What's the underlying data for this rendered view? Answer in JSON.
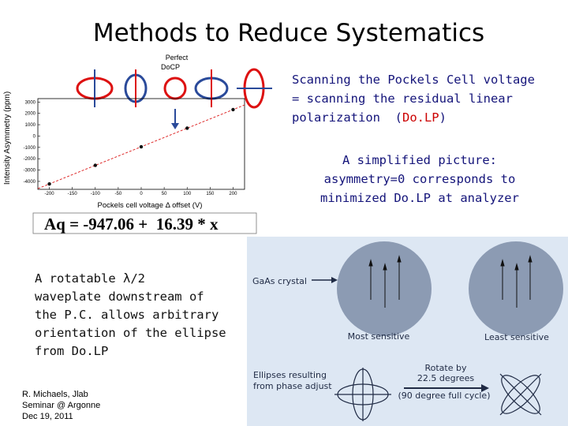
{
  "title": "Methods to Reduce Systematics",
  "chart_data": {
    "type": "scatter",
    "y_label": "Intensity Asymmetry (ppm)",
    "x_label": "Pockels cell voltage Δ offset (V)",
    "annotation": [
      "Perfect",
      "DoCP"
    ],
    "fit_label": "Aq = -947.06 +  16.39 * x",
    "fit": {
      "intercept": -947.06,
      "slope": 16.39,
      "color": "#dd2222"
    },
    "x": [
      -200,
      -100,
      0,
      100,
      200
    ],
    "values": [
      -4225,
      -2586,
      -947,
      692,
      2331
    ],
    "color": "#111111",
    "xlim": [
      -225,
      225
    ],
    "ylim": [
      -4700,
      3300
    ],
    "xticks": [
      -200,
      -150,
      -100,
      -50,
      0,
      50,
      100,
      150,
      200
    ],
    "yticks": [
      -4000,
      -3000,
      -2000,
      -1000,
      0,
      1000,
      2000,
      3000
    ],
    "grid": false
  },
  "right_text": {
    "lines": [
      "Scanning the Pockels Cell voltage",
      "= scanning the residual linear"
    ],
    "last_line": [
      "polarization  (",
      "Do.LP",
      ")"
    ]
  },
  "simplified": [
    "A simplified picture:",
    "asymmetry=0 corresponds to",
    "minimized Do.LP at analyzer"
  ],
  "left_text": [
    "A rotatable λ/2",
    "waveplate  downstream of",
    "the P.C. allows arbitrary",
    "orientation of the ellipse",
    "from Do.LP"
  ],
  "footer": [
    "R. Michaels,  Jlab",
    "Seminar @ Argonne",
    " Dec 19, 2011"
  ],
  "diagram": {
    "gaas": "GaAs crystal",
    "most": "Most sensitive",
    "least": "Least sensitive",
    "ellipses": [
      "Ellipses resulting",
      "from phase adjust"
    ],
    "rotate": [
      "Rotate by",
      "22.5 degrees"
    ],
    "cycle": "(90 degree full cycle)"
  }
}
